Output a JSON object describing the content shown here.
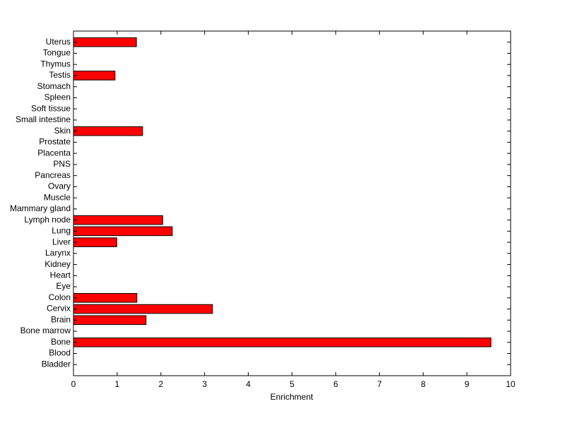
{
  "chart_data": {
    "type": "barh",
    "xlabel": "Enrichment",
    "categories": [
      "Bladder",
      "Blood",
      "Bone",
      "Bone marrow",
      "Brain",
      "Cervix",
      "Colon",
      "Eye",
      "Heart",
      "Kidney",
      "Larynx",
      "Liver",
      "Lung",
      "Lymph node",
      "Mammary gland",
      "Muscle",
      "Ovary",
      "Pancreas",
      "PNS",
      "Placenta",
      "Prostate",
      "Skin",
      "Small intestine",
      "Soft tissue",
      "Spleen",
      "Stomach",
      "Testis",
      "Thymus",
      "Tongue",
      "Uterus"
    ],
    "values": [
      0,
      0,
      9.55,
      0,
      1.66,
      3.18,
      1.45,
      0,
      0,
      0,
      0,
      0.99,
      2.26,
      2.04,
      0,
      0,
      0,
      0,
      0,
      0,
      0,
      1.58,
      0,
      0,
      0,
      0,
      0.95,
      0,
      0,
      1.44
    ],
    "color": "#ff0000",
    "xlim": [
      0,
      10
    ],
    "xticks": [
      0,
      1,
      2,
      3,
      4,
      5,
      6,
      7,
      8,
      9,
      10
    ]
  }
}
